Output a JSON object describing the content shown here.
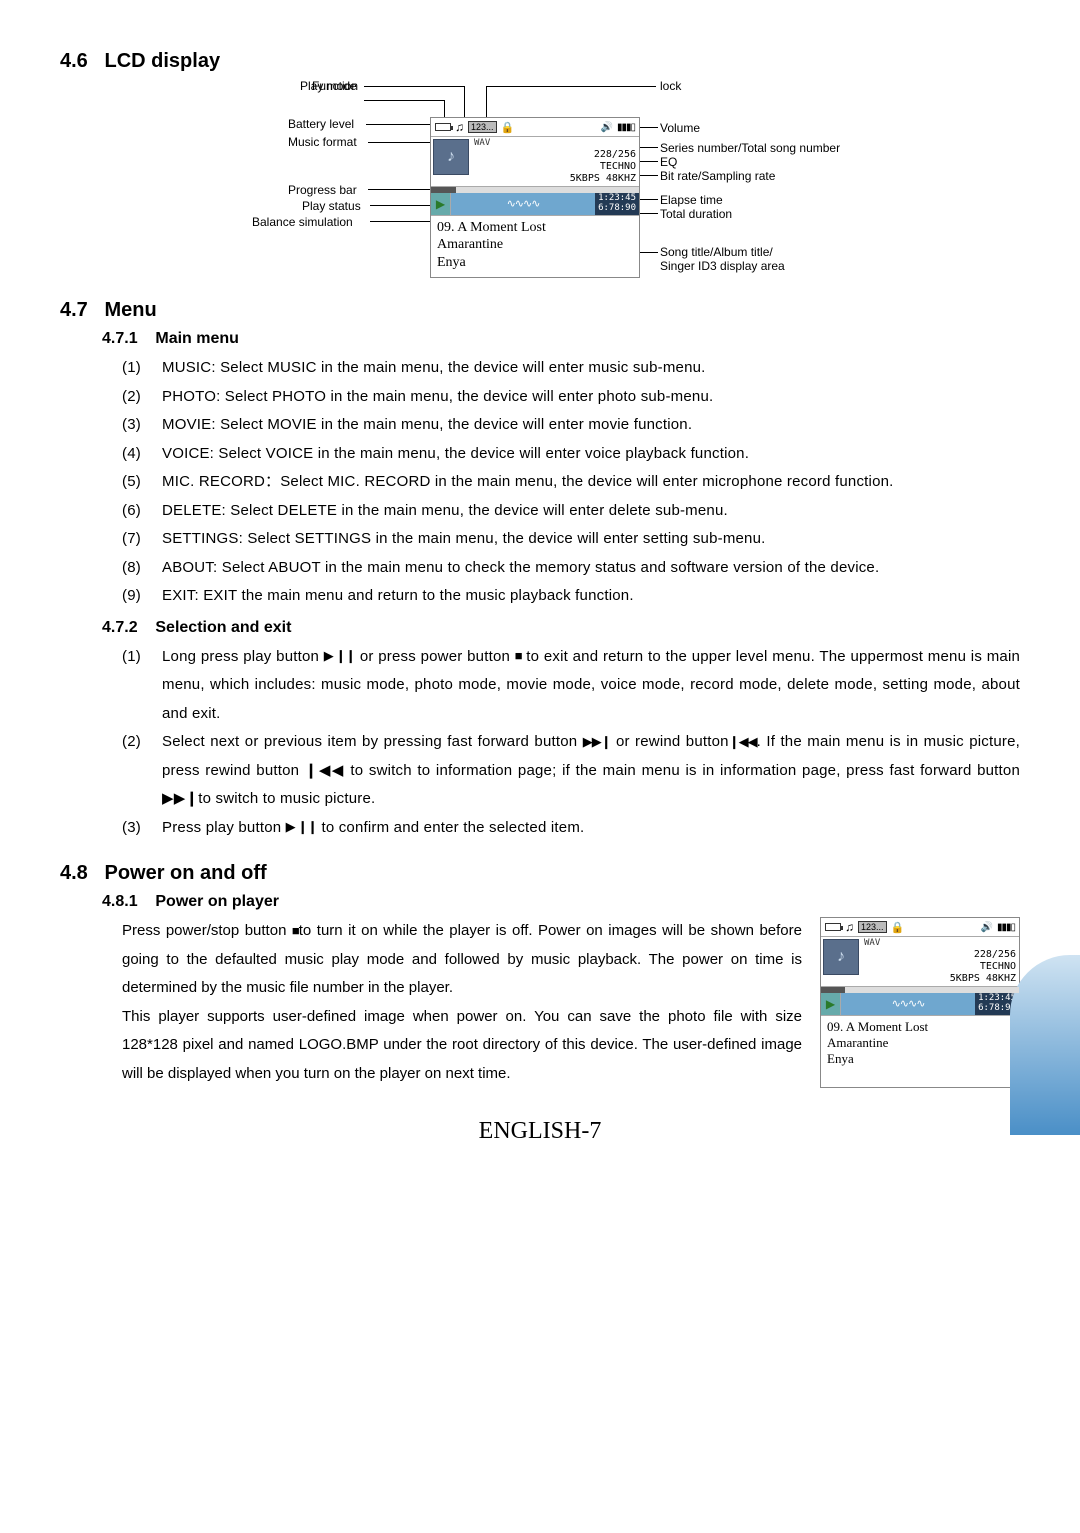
{
  "section46": {
    "num": "4.6",
    "title": "LCD display"
  },
  "section47": {
    "num": "4.7",
    "title": "Menu",
    "sub1": {
      "num": "4.7.1",
      "title": "Main menu"
    },
    "items1": [
      {
        "idx": "(1)",
        "txt": "MUSIC: Select MUSIC in the main menu, the device will enter music sub-menu."
      },
      {
        "idx": "(2)",
        "txt": "PHOTO: Select PHOTO in the main menu, the device will enter photo sub-menu."
      },
      {
        "idx": "(3)",
        "txt": "MOVIE: Select MOVIE in the main menu, the device will enter movie function."
      },
      {
        "idx": "(4)",
        "txt": "VOICE: Select VOICE in the main menu, the device will enter voice playback function."
      },
      {
        "idx": "(5)",
        "txt": "MIC. RECORD：Select MIC. RECORD in the main menu, the device will enter microphone record function."
      },
      {
        "idx": "(6)",
        "txt": "DELETE: Select DELETE in the main menu, the device will enter delete sub-menu."
      },
      {
        "idx": "(7)",
        "txt": "SETTINGS: Select SETTINGS in the main menu, the device will enter setting sub-menu."
      },
      {
        "idx": "(8)",
        "txt": "ABOUT: Select ABUOT in the main menu to check the memory status and software version of the device."
      },
      {
        "idx": "(9)",
        "txt": "EXIT: EXIT the main menu and return to the music playback function."
      }
    ],
    "sub2": {
      "num": "4.7.2",
      "title": "Selection and exit"
    },
    "items2": [
      {
        "idx": "(1)",
        "pre": "Long press play button ",
        "ic1": "▶ ❙❙",
        "mid": " or press power button ",
        "ic2": "■",
        "post": " to exit and return to the upper level menu. The uppermost menu is main menu, which includes: music mode, photo mode, movie mode, voice mode, record mode, delete mode, setting mode, about and exit."
      },
      {
        "idx": "(2)",
        "pre": "Select next or previous item by pressing fast forward button ",
        "ic1": "▶▶❙",
        "mid": " or rewind button",
        "ic2": "❙◀◀",
        "post": ". If the main menu is in music picture, press rewind button ❙◀◀ to switch to information page; if the main menu is in information page, press fast forward button ▶▶❙to switch to music picture."
      },
      {
        "idx": "(3)",
        "pre": "Press play button  ",
        "ic1": "▶ ❙❙",
        "mid": "  to confirm and enter the selected item.",
        "ic2": "",
        "post": ""
      }
    ]
  },
  "section48": {
    "num": "4.8",
    "title": "Power on and off",
    "sub1": {
      "num": "4.8.1",
      "title": "Power on player"
    },
    "para_pre": "Press power/stop button ",
    "para_icon": "■",
    "para_post": "to turn it on while the player is off. Power on images will be shown before going to the defaulted music play mode and followed by music playback. The power on time is determined by the music file number in the player.",
    "para2": "This player supports user-defined image when power on. You can save the photo file with size 128*128 pixel and named LOGO.BMP under the root directory of this device. The user-defined image will be displayed when you turn on the player on next time."
  },
  "lcd": {
    "labels_left": [
      "Play mode",
      "Function",
      "Battery level",
      "Music format",
      "Progress bar",
      "Play status",
      "Balance simulation"
    ],
    "labels_right": [
      "lock",
      "Volume",
      "Series number/Total song number",
      "EQ",
      "Bit rate/Sampling rate",
      "Elapse time",
      "Total duration",
      "Song title/Album title/",
      "Singer ID3 display area"
    ],
    "format": "WAV",
    "numbox": "123...",
    "track": "228/256",
    "eq": "TECHNO",
    "rate": "5KBPS 48KHZ",
    "elapse": "1:23:45",
    "total": "6:78:90",
    "song": "09. A Moment Lost",
    "album": "Amarantine",
    "artist": "Enya"
  },
  "footer": "ENGLISH-7"
}
